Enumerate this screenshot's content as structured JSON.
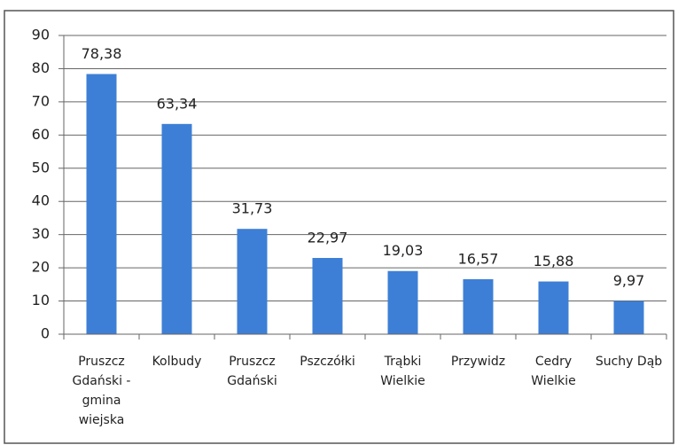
{
  "chart_data": {
    "type": "bar",
    "categories": [
      "Pruszcz Gdański - gmina wiejska",
      "Kolbudy",
      "Pruszcz Gdański",
      "Pszczółki",
      "Trąbki Wielkie",
      "Przywidz",
      "Cedry Wielkie",
      "Suchy Dąb"
    ],
    "values": [
      78.38,
      63.34,
      31.73,
      22.97,
      19.03,
      16.57,
      15.88,
      9.97
    ],
    "value_labels": [
      "78,38",
      "63,34",
      "31,73",
      "22,97",
      "19,03",
      "16,57",
      "15,88",
      "9,97"
    ],
    "color": "#3d7fd6",
    "ylim": [
      0,
      90
    ],
    "yticks": [
      0,
      10,
      20,
      30,
      40,
      50,
      60,
      70,
      80,
      90
    ],
    "grid": true
  }
}
